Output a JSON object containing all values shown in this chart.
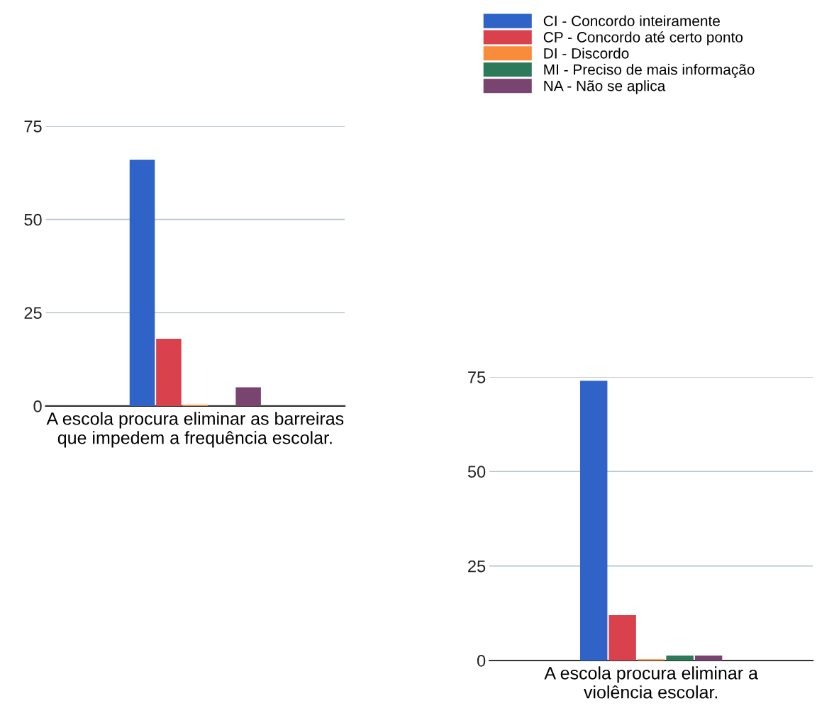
{
  "chart_data": [
    {
      "type": "bar",
      "categories": [
        null
      ],
      "xlabel": "A escola procura eliminar as barreiras\nque impedem a frequência escolar.",
      "ylim": [
        0,
        75
      ],
      "yticks": [
        0,
        25,
        50,
        75
      ],
      "grid": "y",
      "legend": false,
      "tick_labels": "y",
      "series": [
        {
          "color": "#2f63c8",
          "values": [
            66
          ]
        },
        {
          "color": "#d9424c",
          "values": [
            18
          ]
        },
        {
          "color": "#f98c3a",
          "values": [
            0.3
          ]
        },
        {
          "color": "#2c7a5a",
          "values": [
            0
          ]
        },
        {
          "color": "#7a4470",
          "values": [
            5
          ]
        }
      ]
    },
    {
      "type": "bar",
      "categories": [
        null
      ],
      "xlabel": "A escola procura eliminar a\nviolência escolar.",
      "ylim": [
        0,
        75
      ],
      "yticks": [
        0,
        25,
        50,
        75
      ],
      "grid": "y",
      "legend": "top",
      "tick_labels": "y",
      "series": [
        {
          "name": "CI - Concordo inteiramente",
          "color": "#2f63c8",
          "values": [
            74
          ]
        },
        {
          "name": "CP - Concordo até certo ponto",
          "color": "#d9424c",
          "values": [
            12
          ]
        },
        {
          "name": "DI - Discordo",
          "color": "#f98c3a",
          "values": [
            0.3
          ]
        },
        {
          "name": "MI - Preciso de mais informação",
          "color": "#2c7a5a",
          "values": [
            1.3
          ]
        },
        {
          "name": "NA - Não se aplica",
          "color": "#7a4470",
          "values": [
            1.3
          ]
        }
      ]
    }
  ]
}
